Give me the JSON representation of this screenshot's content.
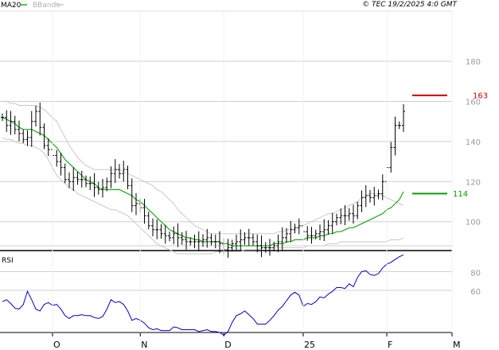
{
  "header": {
    "ma_label": "MA20",
    "bb_label": "BBands",
    "copyright": "© TEC 19/2/2025 4:0 GMT"
  },
  "colors": {
    "price": "#000000",
    "ma": "#1fa81f",
    "bbands": "#c8c8c8",
    "rsi": "#0000cc",
    "resistance": "#cc0000",
    "support": "#00a000",
    "grid": "#cfcfcf",
    "frame": "#000000",
    "axis_text": "#9a9a9a"
  },
  "chart_data": [
    {
      "type": "candlestick",
      "title": "",
      "ylim": [
        86,
        205
      ],
      "y_ticks": [
        100,
        120,
        140,
        160,
        180
      ],
      "y_tick_labels": [
        "100",
        "120",
        "140",
        "160",
        "180"
      ],
      "x_tick_labels": [
        "O",
        "N",
        "D",
        "25",
        "F",
        "M"
      ],
      "x_tick_index": [
        12,
        33,
        53,
        72,
        92,
        112
      ],
      "legend": [
        "MA20",
        "BBands"
      ],
      "grid": true,
      "levels": [
        {
          "name": "resistance",
          "value": 163,
          "label": "163"
        },
        {
          "name": "support",
          "value": 114,
          "label": "114"
        }
      ],
      "ohlc_close": [
        152,
        148,
        150,
        146,
        144,
        141,
        142,
        150,
        155,
        147,
        138,
        136,
        133,
        130,
        127,
        121,
        120,
        122,
        121,
        121,
        119,
        119,
        117,
        116,
        117,
        120,
        124,
        126,
        124,
        126,
        118,
        108,
        109,
        107,
        103,
        98,
        96,
        96,
        94,
        93,
        92,
        94,
        92,
        91,
        90,
        90,
        90,
        90,
        91,
        92,
        90,
        90,
        89,
        86,
        87,
        89,
        90,
        91,
        92,
        92,
        90,
        88,
        87,
        87,
        87,
        88,
        90,
        92,
        94,
        96,
        97,
        98,
        95,
        93,
        93,
        94,
        95,
        96,
        98,
        100,
        102,
        103,
        103,
        104,
        103,
        108,
        112,
        113,
        112,
        113,
        114,
        120,
        127,
        137,
        148,
        148,
        155
      ],
      "ma20": [
        152,
        151,
        150,
        149,
        147,
        146,
        146,
        146,
        145,
        144,
        143,
        141,
        139,
        137,
        134,
        131,
        129,
        127,
        125,
        123,
        121,
        120,
        119,
        117,
        116,
        116,
        116,
        116,
        116,
        115,
        114,
        113,
        111,
        110,
        108,
        106,
        104,
        102,
        100,
        98,
        96,
        95,
        94,
        93,
        92,
        92,
        91,
        91,
        90,
        90,
        90,
        90,
        90,
        89,
        89,
        88,
        88,
        88,
        88,
        88,
        88,
        88,
        88,
        88,
        88,
        89,
        89,
        89,
        90,
        90,
        91,
        91,
        91,
        92,
        92,
        92,
        93,
        93,
        94,
        94,
        95,
        95,
        96,
        97,
        97,
        98,
        99,
        100,
        101,
        102,
        103,
        104,
        106,
        107,
        109,
        111,
        115
      ],
      "bb_upper": [
        160,
        160,
        159,
        159,
        158,
        158,
        158,
        158,
        158,
        157,
        156,
        154,
        152,
        150,
        146,
        142,
        138,
        135,
        132,
        130,
        128,
        127,
        126,
        126,
        126,
        126,
        126,
        126,
        126,
        125,
        124,
        123,
        122,
        121,
        120,
        119,
        118,
        116,
        115,
        113,
        111,
        109,
        106,
        104,
        102,
        100,
        98,
        97,
        96,
        95,
        94,
        94,
        94,
        94,
        94,
        94,
        94,
        94,
        94,
        94,
        94,
        94,
        94,
        94,
        94,
        94,
        95,
        95,
        96,
        96,
        97,
        97,
        98,
        99,
        100,
        101,
        102,
        103,
        104,
        104,
        105,
        106,
        107,
        108,
        109,
        110,
        112,
        113,
        114,
        114,
        114,
        113,
        112,
        111,
        110,
        109,
        108
      ],
      "bb_lower": [
        142,
        141,
        141,
        140,
        139,
        139,
        138,
        138,
        137,
        136,
        134,
        131,
        127,
        123,
        121,
        119,
        117,
        116,
        114,
        113,
        112,
        111,
        110,
        109,
        108,
        107,
        106,
        106,
        105,
        104,
        103,
        101,
        99,
        97,
        95,
        93,
        91,
        89,
        88,
        87,
        86,
        85,
        84,
        84,
        84,
        84,
        84,
        84,
        84,
        84,
        84,
        85,
        85,
        85,
        85,
        85,
        85,
        85,
        86,
        86,
        86,
        86,
        87,
        87,
        87,
        87,
        87,
        87,
        87,
        87,
        87,
        87,
        87,
        88,
        88,
        88,
        88,
        88,
        89,
        89,
        89,
        90,
        90,
        90,
        90,
        90,
        90,
        90,
        90,
        90,
        90,
        90,
        90,
        91,
        91,
        91,
        92
      ]
    },
    {
      "type": "line",
      "title": "RSI",
      "ylim": [
        15,
        100
      ],
      "y_ticks": [
        60,
        80
      ],
      "y_tick_labels": [
        "60",
        "80"
      ],
      "grid": true,
      "rsi": [
        48,
        50,
        46,
        41,
        40,
        45,
        59,
        50,
        40,
        38,
        45,
        47,
        44,
        45,
        40,
        33,
        30,
        33,
        33,
        34,
        33,
        33,
        31,
        30,
        32,
        40,
        50,
        47,
        48,
        45,
        38,
        28,
        30,
        28,
        25,
        20,
        18,
        19,
        17,
        17,
        17,
        21,
        20,
        18,
        18,
        18,
        18,
        16,
        17,
        18,
        16,
        16,
        15,
        12,
        16,
        26,
        33,
        35,
        38,
        34,
        30,
        24,
        24,
        24,
        28,
        33,
        39,
        43,
        49,
        55,
        58,
        55,
        43,
        46,
        45,
        48,
        53,
        52,
        56,
        59,
        63,
        63,
        62,
        67,
        64,
        74,
        80,
        81,
        77,
        76,
        78,
        84,
        88,
        90,
        93,
        96,
        98
      ]
    }
  ]
}
